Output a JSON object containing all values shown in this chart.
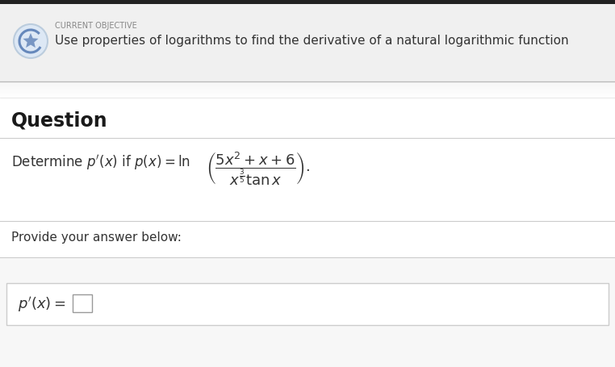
{
  "bg_color": "#ffffff",
  "header_bg": "#f0f0f0",
  "header_border_top": "#222222",
  "header_small_text": "CURRENT OBJECTIVE",
  "header_main_text": "Use properties of logarithms to find the derivative of a natural logarithmic function",
  "question_label": "Question",
  "provide_text": "Provide your answer below:",
  "divider_color": "#cccccc",
  "text_color": "#333333",
  "small_text_color": "#888888",
  "answer_box_bg": "#f7f7f7",
  "icon_circle_color": "#dde8f5",
  "icon_stroke_color": "#6688bb",
  "shadow_color": "#bbbbbb"
}
